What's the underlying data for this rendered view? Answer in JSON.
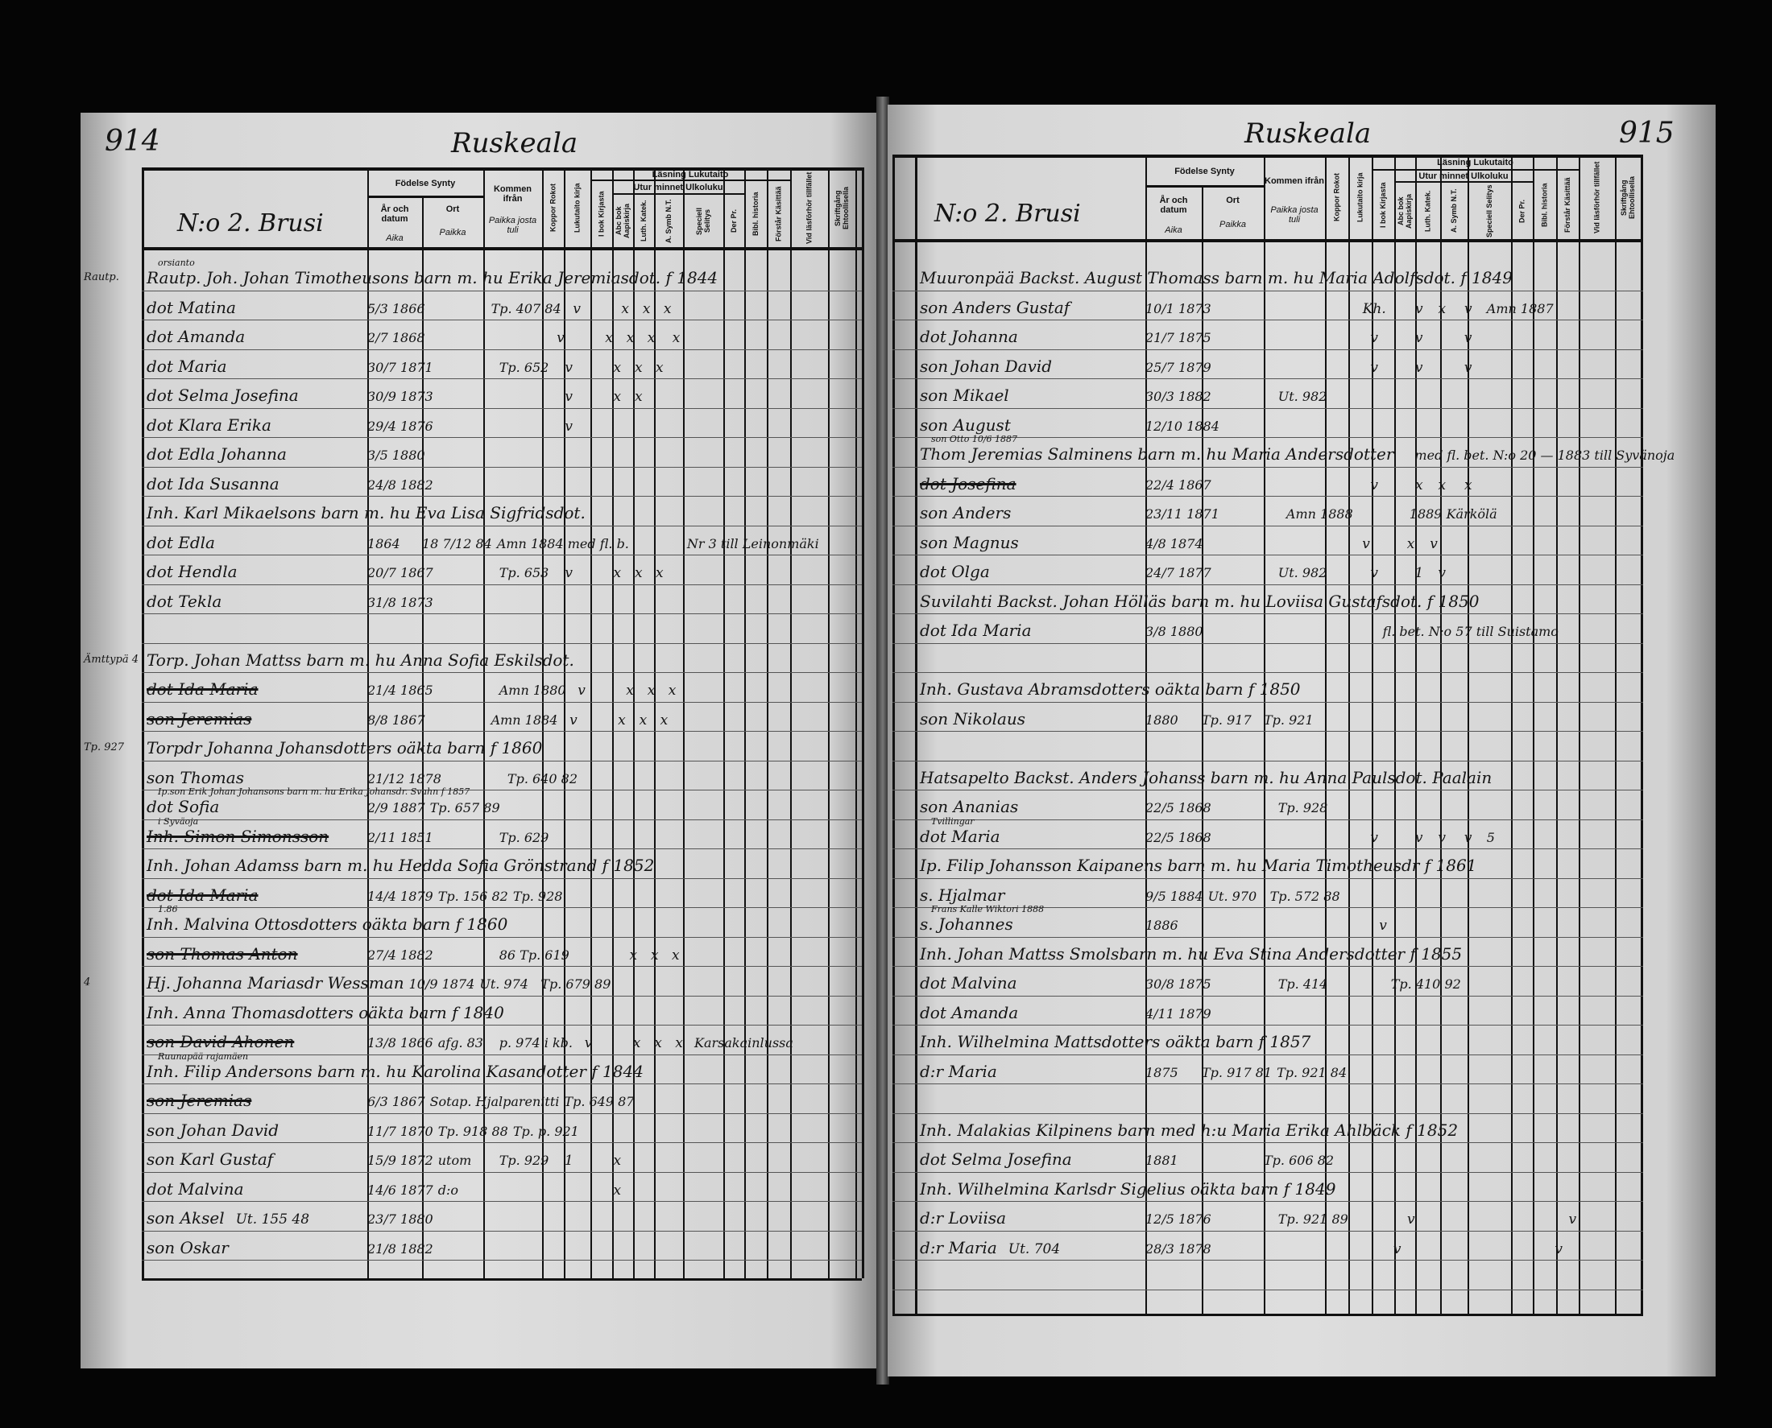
{
  "headers": {
    "birth": "Födelse  Synty",
    "year_date": "År och datum",
    "year_date_fi": "Aika",
    "place": "Ort",
    "place_fi": "Paikka",
    "came_from": "Kommen ifrån",
    "came_from_fi": "Paikka josta tuli",
    "vaccination": "Koppor Rokot",
    "literacy_col": "Lukutaito kirja",
    "reading": "Läsning  Lukutaito",
    "by_heart": "Utur minnet  Ulkoluku",
    "in_book": "I bok Kirjasta",
    "abc_book": "Abc bok Aapiskirja",
    "luth_cat": "Luth. Katek.",
    "a_symb": "A. Symb N.T.",
    "special": "Speciell Selitys",
    "der_pr": "Der Pr.",
    "bible_history": "Bibl. historia",
    "understand": "Förstår Käsittää",
    "at_exam": "Vid läsförhör tillfället",
    "communion": "Skriftgång Ehtoollisella"
  },
  "left_page": {
    "page_number": "914",
    "parish": "Ruskeala",
    "village": "N:o 2. Brusi",
    "entries": [
      {
        "note": "orsianto",
        "span": "Rautp. Joh. Johan Timotheusons barn m. hu Erika Jeremiasdot. f 1844",
        "margin": "Rautp."
      },
      {
        "name": "dot Matina",
        "date": "5/3 1866",
        "from": "Tp. 407 84",
        "marks": [
          "v",
          "",
          "x",
          "x",
          "x"
        ]
      },
      {
        "name": "dot Amanda",
        "date": "2/7 1868",
        "marks": [
          "v",
          "",
          "x",
          "x",
          "x",
          "x"
        ]
      },
      {
        "name": "dot Maria",
        "date": "30/7 1871",
        "from": "Tp. 652",
        "marks": [
          "v",
          "",
          "x",
          "x",
          "x"
        ]
      },
      {
        "name": "dot Selma Josefina",
        "date": "30/9 1873",
        "marks": [
          "v",
          "",
          "x",
          "x"
        ]
      },
      {
        "name": "dot Klara Erika",
        "date": "29/4 1876",
        "marks": [
          "v"
        ]
      },
      {
        "name": "dot Edla Johanna",
        "date": "3/5 1880"
      },
      {
        "name": "dot Ida Susanna",
        "date": "24/8 1882"
      },
      {
        "span": "Inh. Karl Mikaelsons barn m. hu Eva Lisa Sigfridsdot."
      },
      {
        "name": "dot Edla",
        "date": "1864",
        "place": "18 7/12 84",
        "from": "Amn 1884 med fl. b.",
        "remark": "Nr 3 till Leinonmäki"
      },
      {
        "name": "dot Hendla",
        "date": "20/7 1867",
        "from": "Tp. 653",
        "marks": [
          "v",
          "",
          "x",
          "x",
          "x"
        ]
      },
      {
        "name": "dot Tekla",
        "date": "31/8 1873"
      },
      {},
      {
        "span": "Torp. Johan Mattss barn m. hu Anna Sofia Eskilsdot.",
        "margin": "Ämttypä 4"
      },
      {
        "name": "dot Ida Maria",
        "strike": true,
        "date": "21/4 1865",
        "from": "Amn 1880",
        "marks": [
          "v",
          "",
          "x",
          "x",
          "x"
        ]
      },
      {
        "name": "son Jeremias",
        "strike": true,
        "date": "8/8 1867",
        "from": "Amn 1884",
        "marks": [
          "v",
          "",
          "x",
          "x",
          "x"
        ]
      },
      {
        "span": "Torpdr Johanna Johansdotters oäkta barn f 1860",
        "margin": "Tp. 927"
      },
      {
        "name": "son Thomas",
        "date": "21/12 1878",
        "from": "Tp. 640 82"
      },
      {
        "note": "Ip.son Erik Johan Johansons barn m. hu Erika Johansdr. Svahn f 1857",
        "name": "dot Sofia",
        "date": "2/9 1887",
        "place": "Tp. 657 89"
      },
      {
        "note": "i Syväoja",
        "name": "Inh. Simon Simonsson",
        "strike": true,
        "date": "2/11 1851",
        "from": "Tp. 629"
      },
      {
        "span": "Inh. Johan Adamss barn m. hu Hedda Sofia Grönstrand f 1852"
      },
      {
        "name": "dot Ida Maria",
        "strike": true,
        "date": "14/4 1879",
        "place": "Tp. 156 82",
        "from": "Tp. 928"
      },
      {
        "note": "1.86",
        "span": "Inh. Malvina Ottosdotters oäkta barn f 1860"
      },
      {
        "name": "son Thomas Anton",
        "strike": true,
        "date": "27/4 1882",
        "from": "86 Tp. 619",
        "marks": [
          "",
          "",
          "x",
          "x",
          "x"
        ]
      },
      {
        "name": "Hj. Johanna Mariasdr Wessman",
        "date": "10/9 1874",
        "place": "Ut. 974",
        "from": "Tp. 679 89",
        "margin": "4"
      },
      {
        "span": "Inh. Anna Thomasdotters oäkta barn f 1840"
      },
      {
        "name": "son David Ahonen",
        "strike": true,
        "date": "13/8 1866",
        "place": "afg. 83",
        "from": "p. 974 i kb.",
        "marks": [
          "v",
          "",
          "x",
          "x",
          "x"
        ],
        "remark": "Karsakainlussa"
      },
      {
        "note": "Ruunapää rajamäen",
        "span": "Inh. Filip Andersons barn m. hu Karolina Kasandotter f 1844"
      },
      {
        "name": "son Jeremias",
        "strike": true,
        "date": "6/3 1867",
        "place": "Sotap. Hjalparenitti",
        "from": "Tp. 649 87"
      },
      {
        "name": "son Johan David",
        "date": "11/7 1870",
        "place": "Tp. 918 88",
        "from": "Tp. p. 921"
      },
      {
        "name": "son Karl Gustaf",
        "date": "15/9 1872",
        "place": "utom",
        "from": "Tp. 929",
        "marks": [
          "1",
          "",
          "x"
        ]
      },
      {
        "name": "dot Malvina",
        "date": "14/6 1877",
        "place": "d:o",
        "marks": [
          "",
          "",
          "x"
        ]
      },
      {
        "name": "son Aksel",
        "date": "23/7 1880",
        "extra": "Ut. 155 48"
      },
      {
        "name": "son Oskar",
        "date": "21/8 1882"
      }
    ]
  },
  "right_page": {
    "page_number": "915",
    "parish": "Ruskeala",
    "village": "N:o 2. Brusi",
    "entries": [
      {
        "span": "Muuronpää Backst. August Thomass barn m. hu Maria Adolfsdot. f 1849"
      },
      {
        "name": "son Anders Gustaf",
        "date": "10/1 1873",
        "marks": [
          "",
          "Kh.",
          "",
          "v",
          "x",
          "v"
        ],
        "remark": "Amn 1887"
      },
      {
        "name": "dot Johanna",
        "date": "21/7 1875",
        "marks": [
          "",
          "v",
          "",
          "v",
          "",
          "v"
        ]
      },
      {
        "name": "son Johan David",
        "date": "25/7 1879",
        "marks": [
          "",
          "v",
          "",
          "v",
          "",
          "v"
        ]
      },
      {
        "name": "son Mikael",
        "date": "30/3 1882",
        "from": "Ut. 982"
      },
      {
        "name": "son August",
        "date": "12/10 1884"
      },
      {
        "note": "son Otto 10/6 1887",
        "span": "Thom Jeremias Salminens barn m. hu Maria Andersdotter",
        "remark": "med fl. bet. N:o 20 — 1883 till Syvänoja"
      },
      {
        "name": "dot Josefina",
        "strike": true,
        "date": "22/4 1867",
        "marks": [
          "",
          "v",
          "",
          "x",
          "x",
          "x"
        ]
      },
      {
        "name": "son Anders",
        "date": "23/11 1871",
        "from": "Amn 1888",
        "remark": "1889 Kärkölä"
      },
      {
        "name": "son Magnus",
        "date": "4/8 1874",
        "marks": [
          "",
          "v",
          "",
          "x",
          "v"
        ]
      },
      {
        "name": "dot Olga",
        "date": "24/7 1877",
        "from": "Ut. 982",
        "marks": [
          "",
          "v",
          "",
          "1",
          "v"
        ]
      },
      {
        "span": "Suvilahti Backst. Johan Hölläs barn m. hu Loviisa Gustafsdot. f 1850"
      },
      {
        "name": "dot Ida Maria",
        "date": "3/8 1880",
        "remark": "fl. bet. N:o 57 till Suistamo"
      },
      {},
      {
        "span": "Inh. Gustava Abramsdotters oäkta barn f 1850"
      },
      {
        "name": "son Nikolaus",
        "date": "1880",
        "place": "Tp. 917",
        "from": "Tp. 921"
      },
      {},
      {
        "span": "Hatsapelto Backst. Anders Johanss barn m. hu Anna Paulsdot. Paalain"
      },
      {
        "name": "son Ananias",
        "date": "22/5 1868",
        "from": "Tp. 928"
      },
      {
        "note": "Tvillingar",
        "name": "dot Maria",
        "date": "22/5 1868",
        "marks": [
          "",
          "v",
          "",
          "v",
          "v",
          "v"
        ],
        "remark": "5"
      },
      {
        "span": "Ip. Filip Johansson Kaipanens barn m. hu Maria Timotheusdr f 1861"
      },
      {
        "name": "s. Hjalmar",
        "date": "9/5 1884",
        "place": "Ut. 970",
        "from": "Tp. 572 88"
      },
      {
        "note": "Frans Kalle Wiktori 1888",
        "name": "s. Johannes",
        "date": "1886",
        "marks": [
          "",
          "",
          "v"
        ]
      },
      {
        "span": "Inh. Johan Mattss Smolsbarn m. hu Eva Stina Andersdotter f 1855"
      },
      {
        "name": "dot Malvina",
        "date": "30/8 1875",
        "from": "Tp. 414",
        "remark": "Tp. 410 92"
      },
      {
        "name": "dot Amanda",
        "date": "4/11 1879"
      },
      {
        "span": "Inh. Wilhelmina Mattsdotters oäkta barn f 1857"
      },
      {
        "name": "d:r Maria",
        "date": "1875",
        "place": "Tp. 917 81",
        "from": "Tp. 921 84"
      },
      {},
      {
        "span": "Inh. Malakias Kilpinens barn med h:u Maria Erika Ahlbäck f 1852"
      },
      {
        "name": "dot Selma Josefina",
        "date": "1881",
        "from": "Tp. 606 82"
      },
      {
        "span": "Inh. Wilhelmina Karlsdr Sigelius oäkta barn f 1849"
      },
      {
        "name": "d:r Loviisa",
        "date": "12/5 1876",
        "from": "Tp. 921 89",
        "marks": [
          "",
          "",
          "v",
          "",
          "",
          "",
          "",
          "",
          "v"
        ]
      },
      {
        "name": "d:r Maria",
        "date": "28/3 1878",
        "extra": "Ut. 704",
        "marks": [
          "",
          "",
          "v",
          "",
          "",
          "",
          "",
          "",
          "v"
        ]
      }
    ]
  }
}
